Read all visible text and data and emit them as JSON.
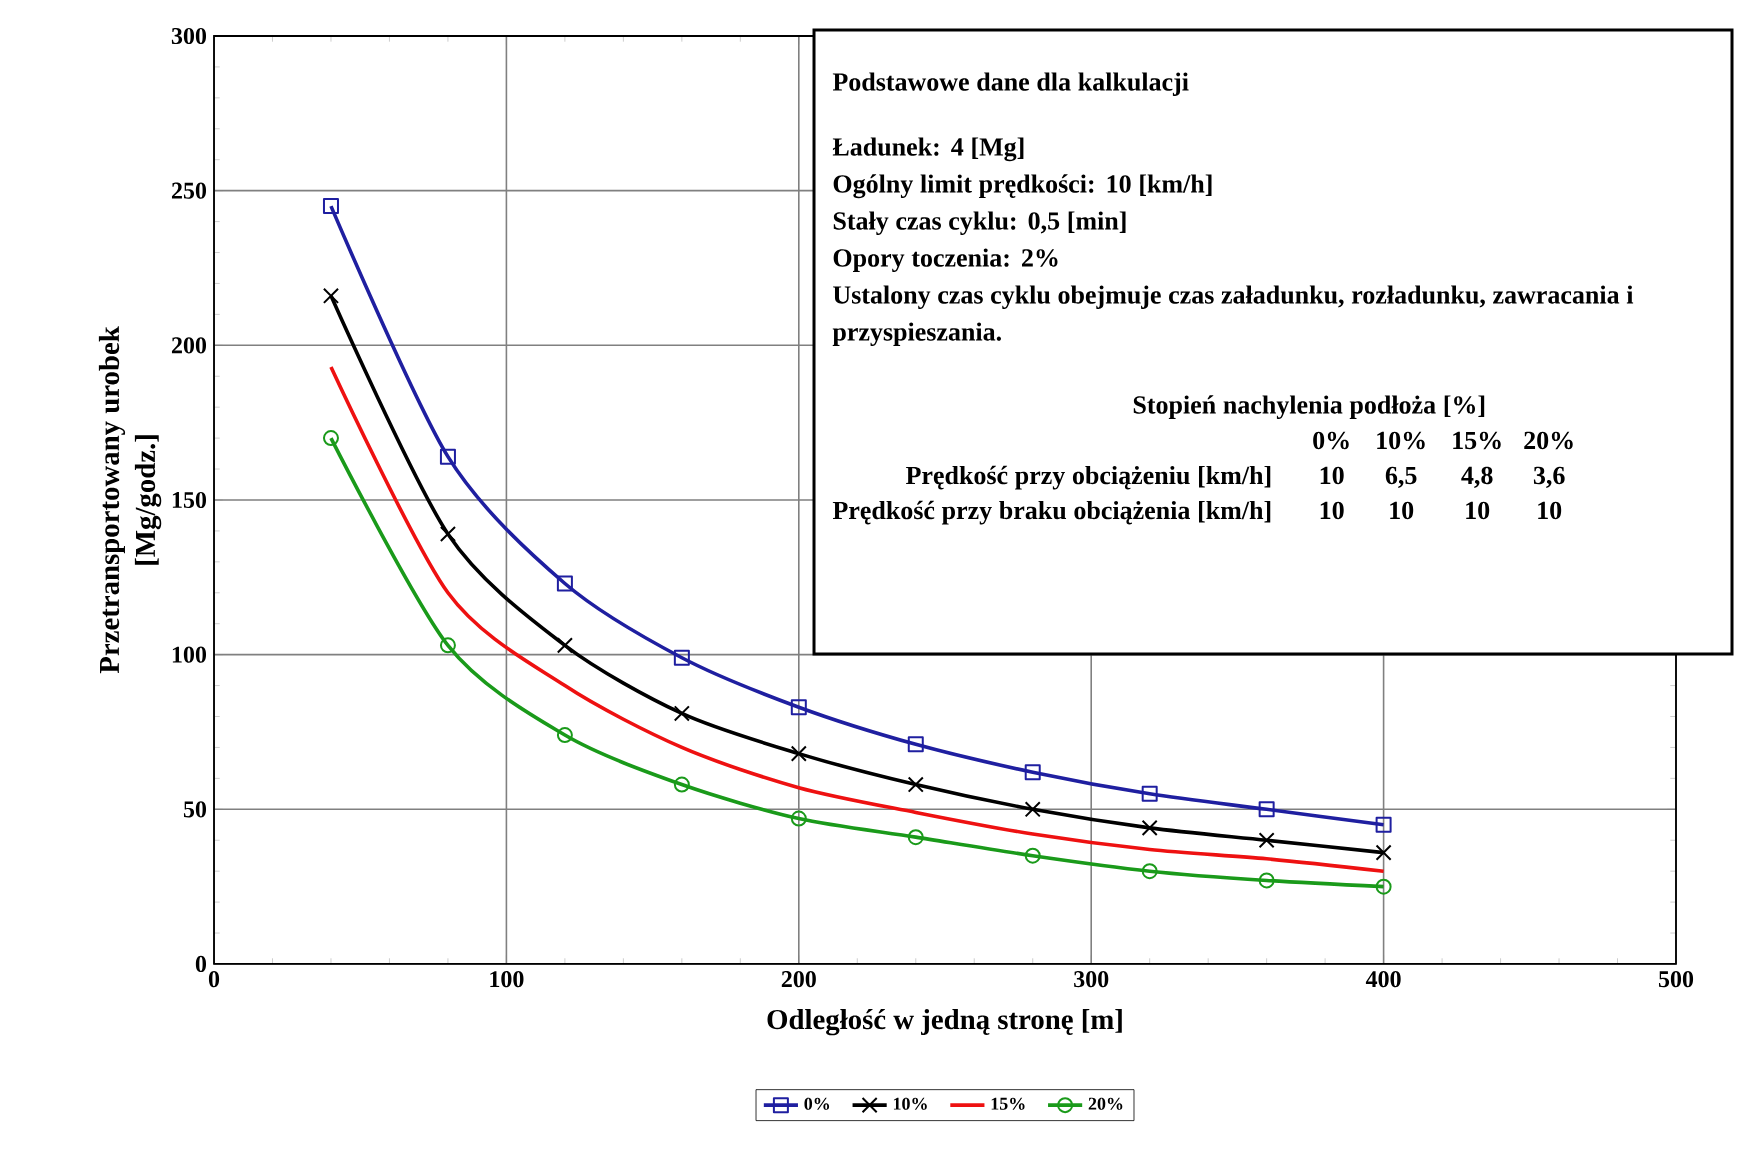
{
  "chart_data": {
    "type": "line",
    "xlabel": "Odległość w jedną stronę [m]",
    "ylabel": "Przetransportowany urobek [Mg/godz.]",
    "x": [
      40,
      80,
      120,
      160,
      200,
      240,
      280,
      320,
      360,
      400
    ],
    "series": [
      {
        "name": "0%",
        "color": "#1f1fa0",
        "marker": "square",
        "values": [
          245,
          164,
          123,
          99,
          83,
          71,
          62,
          55,
          50,
          45
        ]
      },
      {
        "name": "10%",
        "color": "#000000",
        "marker": "cross",
        "values": [
          216,
          139,
          103,
          81,
          68,
          58,
          50,
          44,
          40,
          36
        ]
      },
      {
        "name": "15%",
        "color": "#ee1111",
        "marker": "none",
        "values": [
          193,
          120,
          90,
          70,
          57,
          49,
          42,
          37,
          34,
          30
        ]
      },
      {
        "name": "20%",
        "color": "#1a9a1a",
        "marker": "circle",
        "values": [
          170,
          103,
          74,
          58,
          47,
          41,
          35,
          30,
          27,
          25
        ]
      }
    ],
    "xlim": [
      0,
      500
    ],
    "ylim": [
      0,
      300
    ],
    "xticks": [
      0,
      100,
      200,
      300,
      400,
      500
    ],
    "yticks": [
      0,
      50,
      100,
      150,
      200,
      250,
      300
    ],
    "grid": true,
    "legend": "bottom",
    "annotations": [
      "Podstawowe dane dla kalkulacji",
      "Ładunek: 4 [Mg]",
      "Ogólny limit prędkości: 10 [km/h]",
      "Stały czas cyklu: 0,5 [min]",
      "Opory toczenia: 2%",
      "Ustalony czas cyklu obejmuje czas załadunku, rozładunku, zawracania i przyspieszania.",
      "Stopień nachylenia podłoża [%]",
      "0%",
      "10%",
      "15%",
      "20%",
      "Prędkość przy obciążeniu [km/h]",
      "10",
      "6,5",
      "4,8",
      "3,6",
      "Prędkość przy braku obciążenia [km/h]",
      "10",
      "10",
      "10",
      "10"
    ]
  }
}
